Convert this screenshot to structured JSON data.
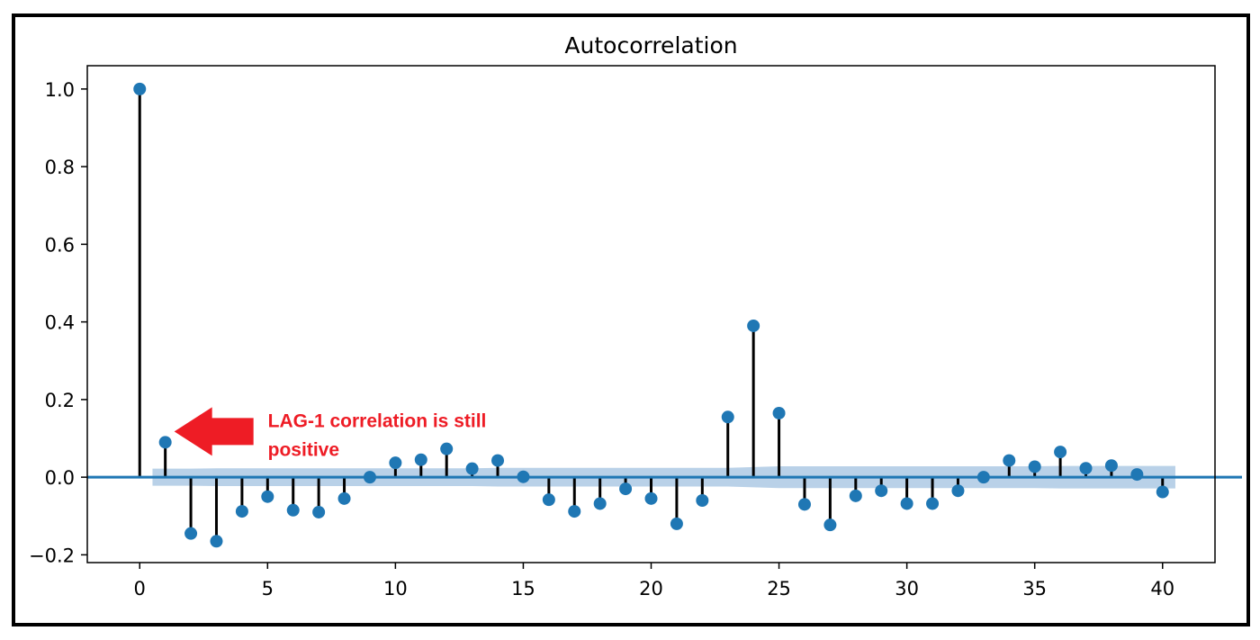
{
  "chart_data": {
    "type": "stem",
    "title": "Autocorrelation",
    "xlabel": "",
    "ylabel": "",
    "xlim": [
      -2.05,
      42.05
    ],
    "ylim": [
      -0.22,
      1.06
    ],
    "xticks": [
      0,
      5,
      10,
      15,
      20,
      25,
      30,
      35,
      40
    ],
    "xtick_labels": [
      "0",
      "5",
      "10",
      "15",
      "20",
      "25",
      "30",
      "35",
      "40"
    ],
    "yticks": [
      -0.2,
      0.0,
      0.2,
      0.4,
      0.6,
      0.8,
      1.0
    ],
    "ytick_labels": [
      "−0.2",
      "0.0",
      "0.2",
      "0.4",
      "0.6",
      "0.8",
      "1.0"
    ],
    "grid": false,
    "lags": [
      0,
      1,
      2,
      3,
      4,
      5,
      6,
      7,
      8,
      9,
      10,
      11,
      12,
      13,
      14,
      15,
      16,
      17,
      18,
      19,
      20,
      21,
      22,
      23,
      24,
      25,
      26,
      27,
      28,
      29,
      30,
      31,
      32,
      33,
      34,
      35,
      36,
      37,
      38,
      39,
      40
    ],
    "values": [
      1.0,
      0.09,
      -0.145,
      -0.165,
      -0.088,
      -0.05,
      -0.085,
      -0.09,
      -0.055,
      0.0,
      0.037,
      0.045,
      0.073,
      0.022,
      0.043,
      0.001,
      -0.058,
      -0.088,
      -0.068,
      -0.03,
      -0.055,
      -0.12,
      -0.06,
      0.155,
      0.39,
      0.165,
      -0.07,
      -0.123,
      -0.048,
      -0.035,
      -0.068,
      -0.068,
      -0.035,
      0.0,
      0.043,
      0.027,
      0.065,
      0.023,
      0.03,
      0.007,
      -0.038
    ],
    "confidence_band": [
      0.022,
      0.022,
      0.022,
      0.023,
      0.023,
      0.023,
      0.023,
      0.023,
      0.023,
      0.023,
      0.023,
      0.023,
      0.023,
      0.023,
      0.024,
      0.024,
      0.024,
      0.024,
      0.024,
      0.024,
      0.024,
      0.024,
      0.024,
      0.024,
      0.026,
      0.028,
      0.028,
      0.028,
      0.028,
      0.028,
      0.028,
      0.028,
      0.028,
      0.028,
      0.028,
      0.028,
      0.029,
      0.029,
      0.029,
      0.029,
      0.029
    ],
    "colors": {
      "marker": "#1f77b4",
      "stem": "#000000",
      "baseline": "#1f77b4",
      "band": "#b9d1e8",
      "annotation": "#ee1c25"
    },
    "annotation": {
      "lines": [
        "LAG-1 correlation is still",
        "positive"
      ],
      "points_to_lag": 1,
      "icon": "left-arrow-icon"
    }
  }
}
